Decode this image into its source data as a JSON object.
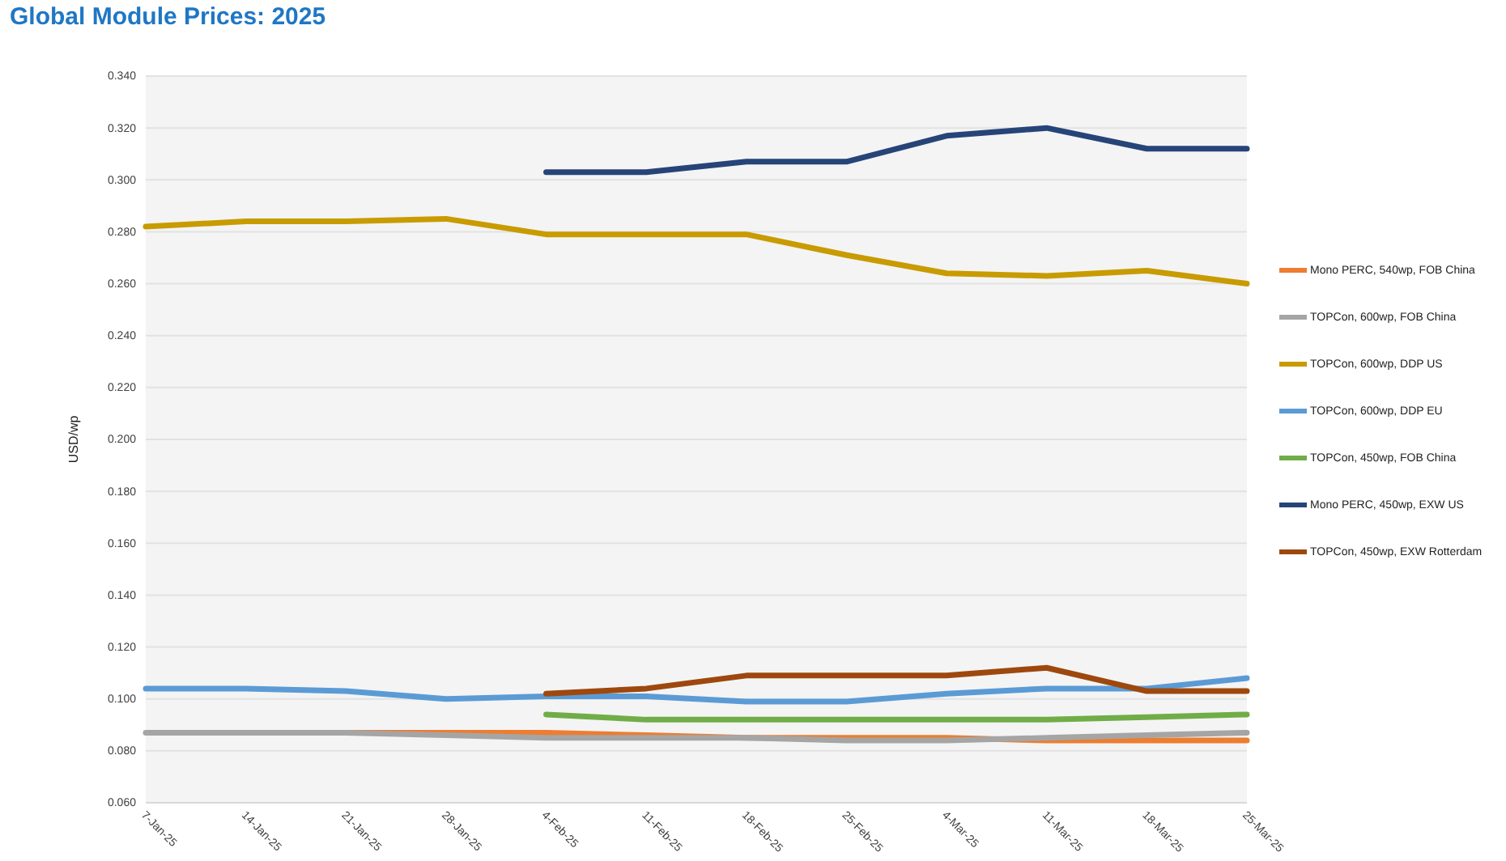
{
  "chart_data": {
    "type": "line",
    "title": "Global Module Prices: 2025",
    "ylabel": "USD/wp",
    "categories": [
      "7-Jan-25",
      "14-Jan-25",
      "21-Jan-25",
      "28-Jan-25",
      "4-Feb-25",
      "11-Feb-25",
      "18-Feb-25",
      "25-Feb-25",
      "4-Mar-25",
      "11-Mar-25",
      "18-Mar-25",
      "25-Mar-25"
    ],
    "series": [
      {
        "name": "Mono PERC, 540wp, FOB China",
        "color": "#ed7d31",
        "values": [
          null,
          null,
          0.087,
          0.087,
          0.087,
          0.086,
          0.085,
          0.085,
          0.085,
          0.084,
          0.084,
          0.084
        ]
      },
      {
        "name": "TOPCon, 600wp, FOB China",
        "color": "#a5a5a5",
        "values": [
          0.087,
          0.087,
          0.087,
          0.086,
          0.085,
          0.085,
          0.085,
          0.084,
          0.084,
          0.085,
          0.086,
          0.087
        ]
      },
      {
        "name": "TOPCon, 600wp, DDP US",
        "color": "#c89b00",
        "values": [
          0.282,
          0.284,
          0.284,
          0.285,
          0.279,
          0.279,
          0.279,
          0.271,
          0.264,
          0.263,
          0.265,
          0.26
        ]
      },
      {
        "name": "TOPCon, 600wp, DDP EU",
        "color": "#5b9bd5",
        "values": [
          0.104,
          0.104,
          0.103,
          0.1,
          0.101,
          0.101,
          0.099,
          0.099,
          0.102,
          0.104,
          0.104,
          0.108
        ]
      },
      {
        "name": "TOPCon, 450wp, FOB China",
        "color": "#70ad47",
        "values": [
          null,
          null,
          null,
          null,
          0.094,
          0.092,
          0.092,
          0.092,
          0.092,
          0.092,
          0.093,
          0.094
        ]
      },
      {
        "name": "Mono PERC, 450wp, EXW US",
        "color": "#264478",
        "values": [
          null,
          null,
          null,
          null,
          0.303,
          0.303,
          0.307,
          0.307,
          0.317,
          0.32,
          0.312,
          0.312
        ]
      },
      {
        "name": "TOPCon, 450wp, EXW Rotterdam",
        "color": "#9e480e",
        "values": [
          null,
          null,
          null,
          null,
          0.102,
          0.104,
          0.109,
          0.109,
          0.109,
          0.112,
          0.103,
          0.103
        ]
      }
    ],
    "ylim": [
      0.06,
      0.34
    ],
    "yticks": [
      {
        "value": 0.06,
        "label": "0.060"
      },
      {
        "value": 0.08,
        "label": "0.080"
      },
      {
        "value": 0.1,
        "label": "0.100"
      },
      {
        "value": 0.12,
        "label": "0.120"
      },
      {
        "value": 0.14,
        "label": "0.140"
      },
      {
        "value": 0.16,
        "label": "0.160"
      },
      {
        "value": 0.18,
        "label": "0.180"
      },
      {
        "value": 0.2,
        "label": "0.200"
      },
      {
        "value": 0.22,
        "label": "0.220"
      },
      {
        "value": 0.24,
        "label": "0.240"
      },
      {
        "value": 0.26,
        "label": "0.260"
      },
      {
        "value": 0.28,
        "label": "0.280"
      },
      {
        "value": 0.3,
        "label": "0.300"
      },
      {
        "value": 0.32,
        "label": "0.320"
      },
      {
        "value": 0.34,
        "label": "0.340"
      }
    ],
    "grid": "y",
    "legend": "right",
    "marker": "none",
    "line_style": "solid"
  }
}
